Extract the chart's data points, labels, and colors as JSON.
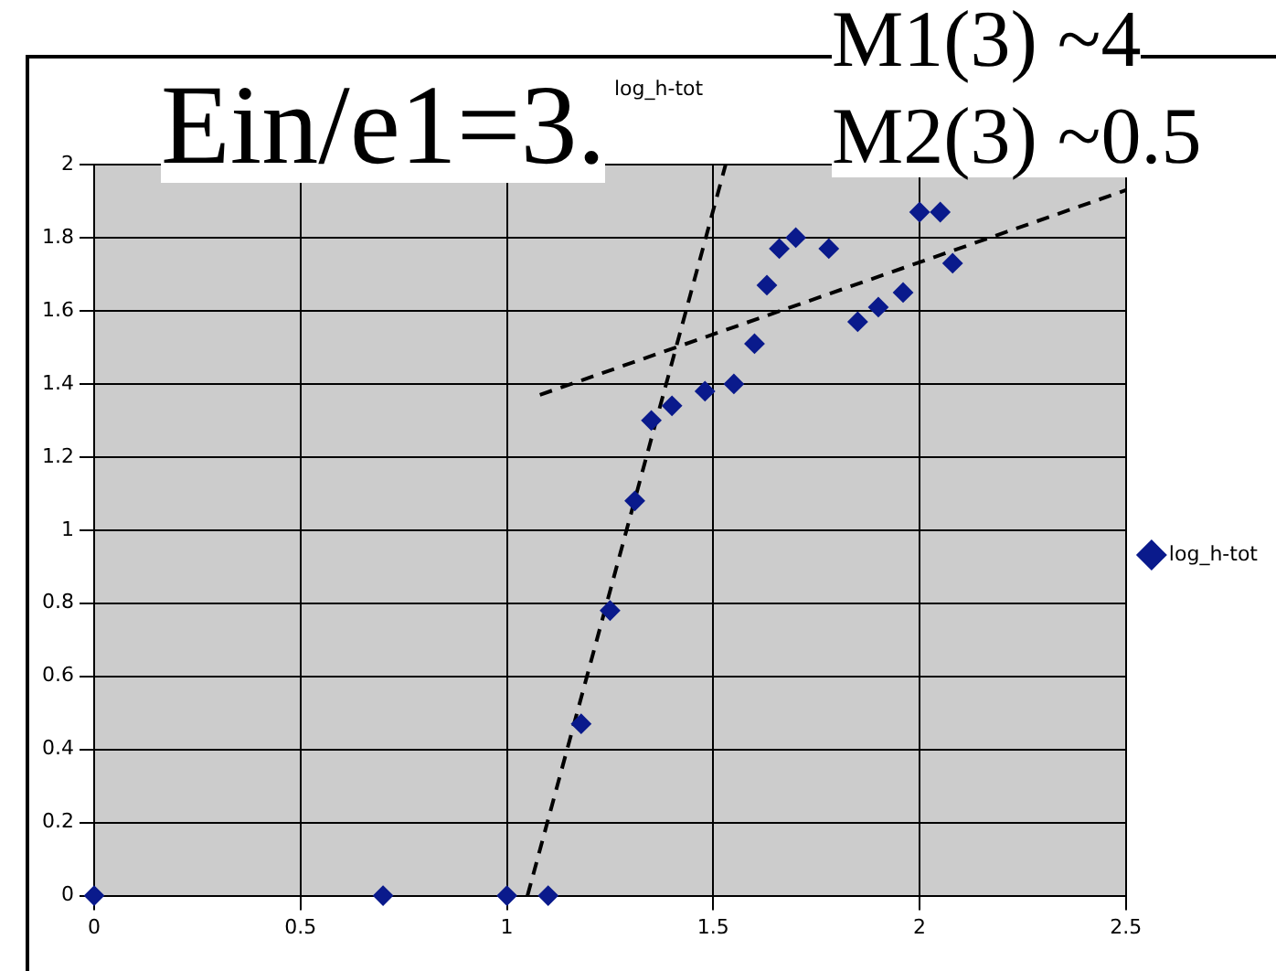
{
  "chart_data": {
    "type": "scatter",
    "title": "log_h-tot",
    "annotations": [
      "Ein/e1=3.",
      "M1(3) ~4",
      "M2(3) ~0.5"
    ],
    "xlim": [
      0,
      2.5
    ],
    "xticks": [
      0,
      0.5,
      1,
      1.5,
      2,
      2.5
    ],
    "ylim": [
      0,
      2
    ],
    "yticks": [
      0,
      0.2,
      0.4,
      0.6,
      0.8,
      1,
      1.2,
      1.4,
      1.6,
      1.8,
      2
    ],
    "grid": true,
    "legend": "right",
    "series": [
      {
        "name": "log_h-tot",
        "color": "#0a1a8c",
        "marker": "diamond",
        "x": [
          0,
          0.7,
          1.0,
          1.1,
          1.18,
          1.25,
          1.31,
          1.35,
          1.4,
          1.48,
          1.55,
          1.6,
          1.63,
          1.66,
          1.7,
          1.78,
          1.85,
          1.9,
          1.96,
          2.0,
          2.05,
          2.08
        ],
        "values": [
          0,
          0,
          0,
          0,
          0.47,
          0.78,
          1.08,
          1.3,
          1.34,
          1.38,
          1.4,
          1.51,
          1.67,
          1.77,
          1.8,
          1.77,
          1.57,
          1.61,
          1.65,
          1.87,
          1.87,
          1.73
        ]
      },
      {
        "type": "line",
        "color": "#000000",
        "line_style": "dashed",
        "x": [
          1.05,
          1.53
        ],
        "values": [
          0,
          2
        ]
      },
      {
        "type": "line",
        "color": "#000000",
        "line_style": "dashed",
        "x": [
          1.08,
          2.5
        ],
        "values": [
          1.37,
          1.93
        ]
      }
    ]
  }
}
